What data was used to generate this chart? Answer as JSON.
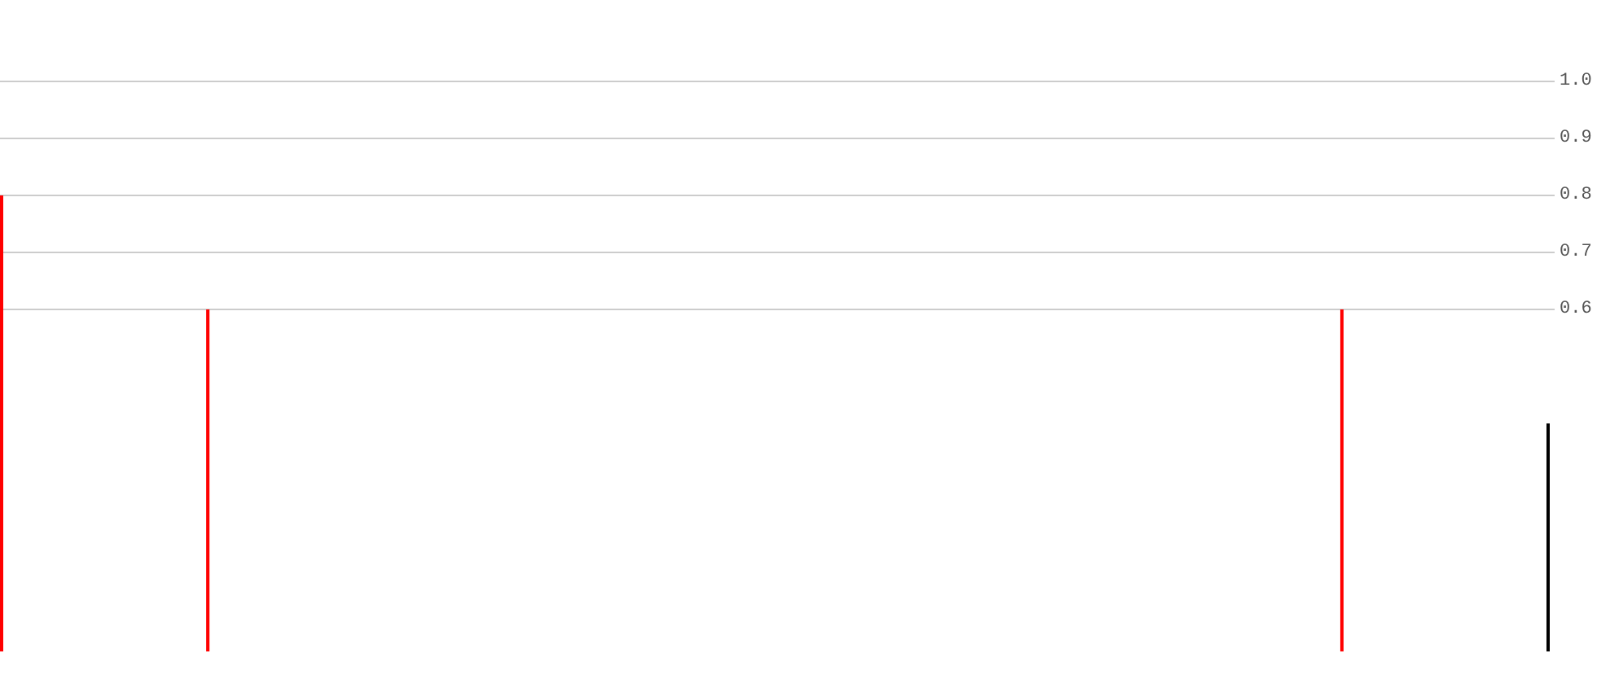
{
  "chart_data": {
    "type": "bar",
    "categories": [
      null,
      null,
      null,
      null,
      null,
      null,
      null,
      null,
      null,
      null,
      null,
      null,
      null,
      null,
      null,
      null
    ],
    "values": [
      0.8,
      null,
      0.6,
      null,
      null,
      null,
      null,
      null,
      null,
      null,
      null,
      null,
      null,
      0.6,
      null,
      0.4
    ],
    "colors": [
      "#ff0000",
      null,
      "#ff0000",
      null,
      null,
      null,
      null,
      null,
      null,
      null,
      null,
      null,
      null,
      "#ff0000",
      null,
      "#000000"
    ],
    "ylim": [
      0,
      1.0
    ],
    "yticks": [
      0.6,
      0.7,
      0.8,
      0.9,
      {
        "value": 1.0,
        "label": "1.0"
      }
    ],
    "grid": "y",
    "tick_labels": "y"
  }
}
